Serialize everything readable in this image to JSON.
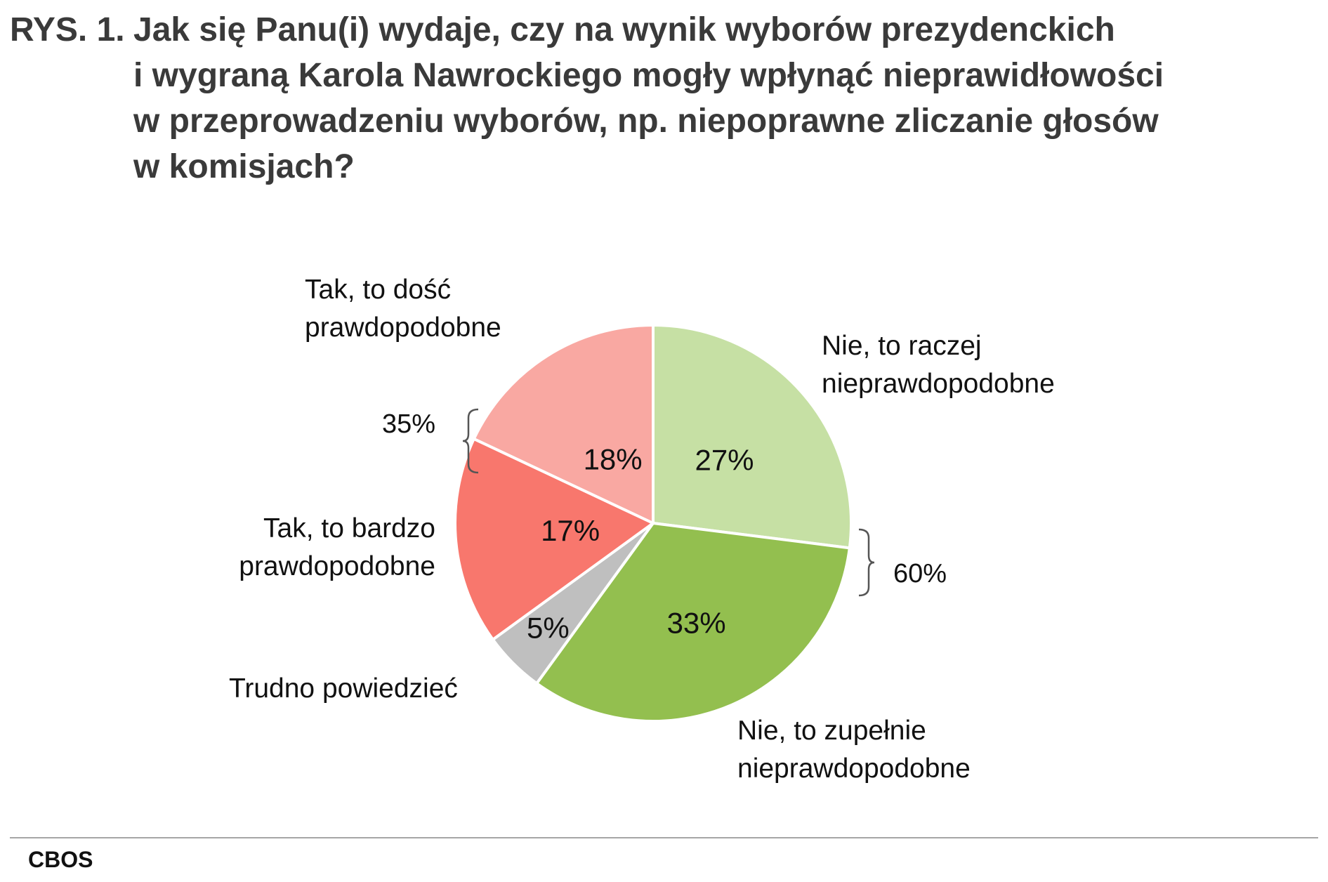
{
  "title": {
    "prefix": "RYS. 1.",
    "lines": [
      "Jak się Panu(i) wydaje, czy na wynik wyborów prezydenckich",
      "i wygraną Karola Nawrockiego mogły wpłynąć nieprawidłowości",
      "w przeprowadzeniu wyborów, np. niepoprawne zliczanie głosów",
      "w komisjach?"
    ]
  },
  "chart_data": {
    "type": "pie",
    "slices": [
      {
        "label": "Nie, to raczej nieprawdopodobne",
        "label_lines": [
          "Nie, to raczej",
          "nieprawdopodobne"
        ],
        "value": 27,
        "value_label": "27%",
        "color": "#c6e0a4"
      },
      {
        "label": "Nie, to zupełnie nieprawdopodobne",
        "label_lines": [
          "Nie, to zupełnie",
          "nieprawdopodobne"
        ],
        "value": 33,
        "value_label": "33%",
        "color": "#93bf4f"
      },
      {
        "label": "Trudno powiedzieć",
        "label_lines": [
          "Trudno powiedzieć"
        ],
        "value": 5,
        "value_label": "5%",
        "color": "#bfbfbf"
      },
      {
        "label": "Tak, to bardzo prawdopodobne",
        "label_lines": [
          "Tak, to bardzo",
          "prawdopodobne"
        ],
        "value": 17,
        "value_label": "17%",
        "color": "#f8776d"
      },
      {
        "label": "Tak, to dość prawdopodobne",
        "label_lines": [
          "Tak, to dość",
          "prawdopodobne"
        ],
        "value": 18,
        "value_label": "18%",
        "color": "#f9a8a2"
      }
    ],
    "group_totals": [
      {
        "value_label": "35%",
        "slices": [
          "Tak, to bardzo prawdopodobne",
          "Tak, to dość prawdopodobne"
        ]
      },
      {
        "value_label": "60%",
        "slices": [
          "Nie, to raczej nieprawdopodobne",
          "Nie, to zupełnie nieprawdopodobne"
        ]
      }
    ]
  },
  "source": "CBOS"
}
